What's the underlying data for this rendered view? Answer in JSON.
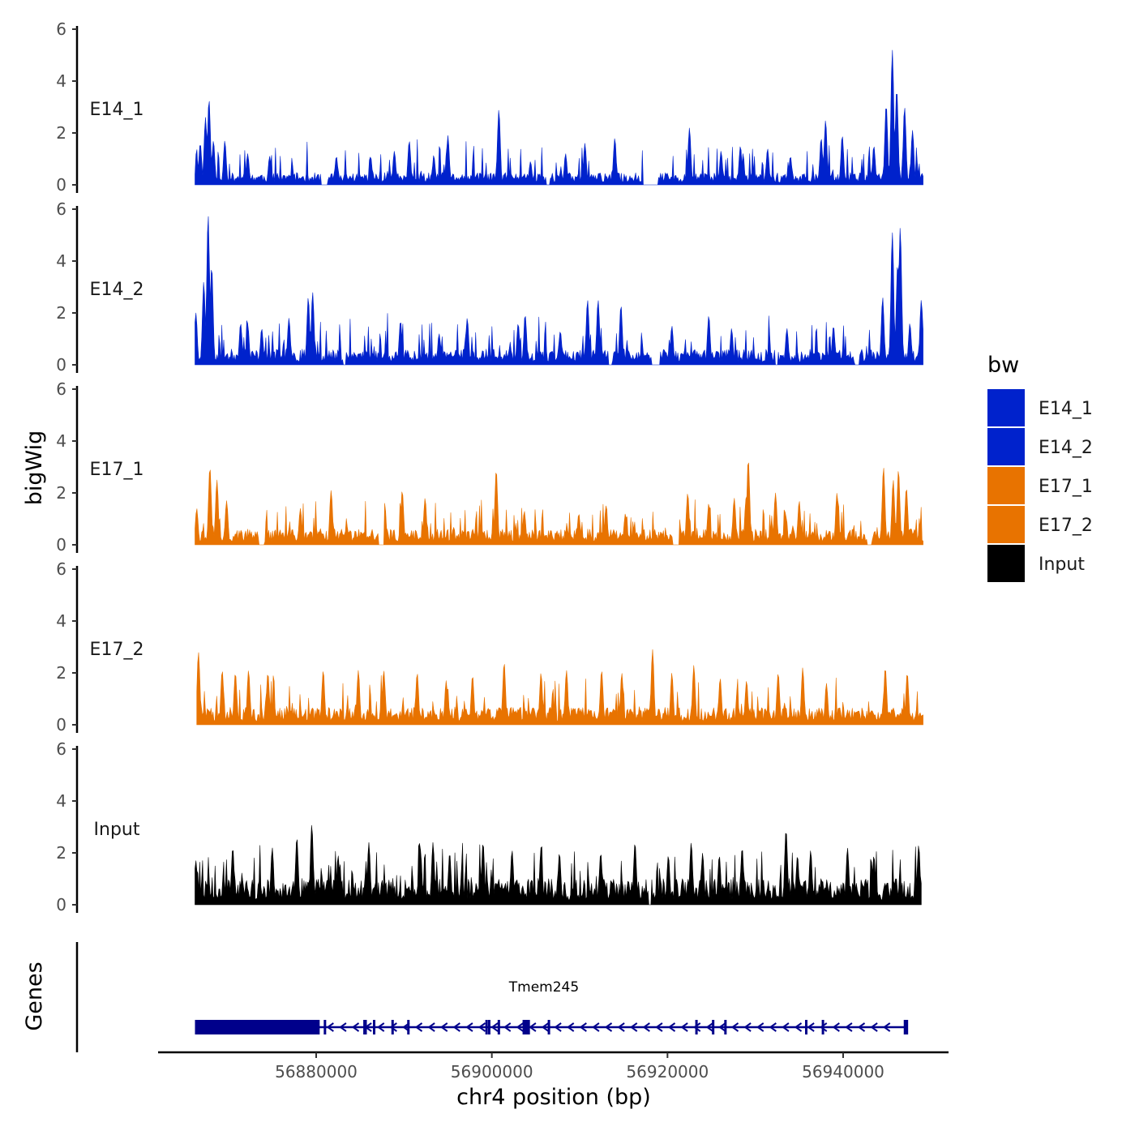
{
  "chart_data": {
    "type": "area",
    "title": "",
    "xlabel": "chr4 position (bp)",
    "ylabel": "bigWig",
    "genes_label": "Genes",
    "xlim": [
      56862000,
      56952000
    ],
    "ylim": [
      0,
      6
    ],
    "x_ticks": [
      56880000,
      56900000,
      56920000,
      56940000
    ],
    "x_tick_labels": [
      "56880000",
      "56900000",
      "56920000",
      "56940000"
    ],
    "y_ticks": [
      0,
      2,
      4,
      6
    ],
    "y_tick_labels": [
      "0",
      "2",
      "4",
      "6"
    ],
    "legend": {
      "title": "bw",
      "position": "right",
      "entries": [
        {
          "label": "E14_1",
          "color": "#0022CC"
        },
        {
          "label": "E14_2",
          "color": "#0022CC"
        },
        {
          "label": "E17_1",
          "color": "#E87300"
        },
        {
          "label": "E17_2",
          "color": "#E87300"
        },
        {
          "label": "Input",
          "color": "#000000"
        }
      ]
    },
    "tracks": [
      {
        "name": "E14_1",
        "color": "#0022CC",
        "x_start": 56866200,
        "x_end": 56949100,
        "base_level": 0.35,
        "noise": 0.55,
        "seed": 11,
        "gaps": [
          [
            56880500,
            56881300
          ],
          [
            56906200,
            56906600
          ],
          [
            56917200,
            56918900
          ]
        ],
        "peaks": [
          {
            "x": 56866400,
            "y": 0.9
          },
          {
            "x": 56866800,
            "y": 1.6
          },
          {
            "x": 56867400,
            "y": 2.6
          },
          {
            "x": 56867800,
            "y": 3.3
          },
          {
            "x": 56868300,
            "y": 1.7
          },
          {
            "x": 56869600,
            "y": 1.7
          },
          {
            "x": 56872200,
            "y": 1.2
          },
          {
            "x": 56874700,
            "y": 1.1
          },
          {
            "x": 56882300,
            "y": 1.1
          },
          {
            "x": 56886200,
            "y": 1.1
          },
          {
            "x": 56888900,
            "y": 1.3
          },
          {
            "x": 56890600,
            "y": 1.7
          },
          {
            "x": 56893400,
            "y": 1.1
          },
          {
            "x": 56895000,
            "y": 1.9
          },
          {
            "x": 56900800,
            "y": 2.9
          },
          {
            "x": 56904400,
            "y": 0.9
          },
          {
            "x": 56908400,
            "y": 1.2
          },
          {
            "x": 56910600,
            "y": 1.6
          },
          {
            "x": 56914000,
            "y": 1.8
          },
          {
            "x": 56922500,
            "y": 2.2
          },
          {
            "x": 56926100,
            "y": 1.3
          },
          {
            "x": 56928300,
            "y": 1.5
          },
          {
            "x": 56931400,
            "y": 1.4
          },
          {
            "x": 56934000,
            "y": 1.1
          },
          {
            "x": 56937500,
            "y": 1.8
          },
          {
            "x": 56938000,
            "y": 2.5
          },
          {
            "x": 56939900,
            "y": 1.9
          },
          {
            "x": 56943500,
            "y": 1.5
          },
          {
            "x": 56944900,
            "y": 3.1
          },
          {
            "x": 56945600,
            "y": 5.2
          },
          {
            "x": 56946100,
            "y": 3.7
          },
          {
            "x": 56947000,
            "y": 3.0
          },
          {
            "x": 56947900,
            "y": 2.1
          }
        ]
      },
      {
        "name": "E14_2",
        "color": "#0022CC",
        "x_start": 56866200,
        "x_end": 56949100,
        "base_level": 0.45,
        "noise": 0.6,
        "seed": 23,
        "gaps": [
          [
            56883000,
            56883400
          ],
          [
            56913300,
            56913700
          ],
          [
            56918200,
            56919200
          ],
          [
            56932300,
            56932600
          ],
          [
            56941300,
            56941800
          ]
        ],
        "peaks": [
          {
            "x": 56866300,
            "y": 2.0
          },
          {
            "x": 56867200,
            "y": 3.2
          },
          {
            "x": 56867700,
            "y": 5.8
          },
          {
            "x": 56868100,
            "y": 3.8
          },
          {
            "x": 56871400,
            "y": 1.6
          },
          {
            "x": 56872200,
            "y": 1.6
          },
          {
            "x": 56873800,
            "y": 1.4
          },
          {
            "x": 56876900,
            "y": 1.8
          },
          {
            "x": 56879100,
            "y": 2.6
          },
          {
            "x": 56879600,
            "y": 2.8
          },
          {
            "x": 56889600,
            "y": 1.7
          },
          {
            "x": 56894000,
            "y": 1.2
          },
          {
            "x": 56897200,
            "y": 1.8
          },
          {
            "x": 56903000,
            "y": 1.6
          },
          {
            "x": 56903800,
            "y": 1.9
          },
          {
            "x": 56907800,
            "y": 1.3
          },
          {
            "x": 56910900,
            "y": 2.5
          },
          {
            "x": 56912100,
            "y": 2.5
          },
          {
            "x": 56914700,
            "y": 2.3
          },
          {
            "x": 56920500,
            "y": 1.5
          },
          {
            "x": 56924700,
            "y": 1.9
          },
          {
            "x": 56927300,
            "y": 1.4
          },
          {
            "x": 56933600,
            "y": 1.4
          },
          {
            "x": 56938900,
            "y": 1.5
          },
          {
            "x": 56944500,
            "y": 2.6
          },
          {
            "x": 56945600,
            "y": 5.1
          },
          {
            "x": 56946200,
            "y": 3.9
          },
          {
            "x": 56946500,
            "y": 5.3
          },
          {
            "x": 56947600,
            "y": 1.6
          },
          {
            "x": 56948900,
            "y": 2.5
          }
        ]
      },
      {
        "name": "E17_1",
        "color": "#E87300",
        "x_start": 56866200,
        "x_end": 56949100,
        "base_level": 0.45,
        "noise": 0.55,
        "seed": 37,
        "gaps": [
          [
            56873400,
            56874100
          ],
          [
            56887100,
            56887700
          ],
          [
            56920600,
            56921300
          ],
          [
            56942700,
            56943300
          ]
        ],
        "peaks": [
          {
            "x": 56866400,
            "y": 1.4
          },
          {
            "x": 56867900,
            "y": 3.0
          },
          {
            "x": 56868700,
            "y": 2.5
          },
          {
            "x": 56869800,
            "y": 1.7
          },
          {
            "x": 56878200,
            "y": 1.4
          },
          {
            "x": 56881700,
            "y": 2.1
          },
          {
            "x": 56887800,
            "y": 1.6
          },
          {
            "x": 56889800,
            "y": 2.1
          },
          {
            "x": 56892400,
            "y": 1.8
          },
          {
            "x": 56900500,
            "y": 2.9
          },
          {
            "x": 56903700,
            "y": 1.3
          },
          {
            "x": 56909900,
            "y": 1.2
          },
          {
            "x": 56913000,
            "y": 1.5
          },
          {
            "x": 56915200,
            "y": 1.2
          },
          {
            "x": 56922300,
            "y": 2.0
          },
          {
            "x": 56924700,
            "y": 1.6
          },
          {
            "x": 56927600,
            "y": 1.8
          },
          {
            "x": 56929200,
            "y": 3.3
          },
          {
            "x": 56932300,
            "y": 2.0
          },
          {
            "x": 56935000,
            "y": 1.7
          },
          {
            "x": 56939300,
            "y": 2.0
          },
          {
            "x": 56944600,
            "y": 3.0
          },
          {
            "x": 56945700,
            "y": 2.5
          },
          {
            "x": 56946300,
            "y": 2.9
          },
          {
            "x": 56947200,
            "y": 2.2
          }
        ]
      },
      {
        "name": "E17_2",
        "color": "#E87300",
        "x_start": 56866400,
        "x_end": 56949100,
        "base_level": 0.5,
        "noise": 0.6,
        "seed": 51,
        "gaps": [],
        "peaks": [
          {
            "x": 56866600,
            "y": 2.8
          },
          {
            "x": 56869300,
            "y": 2.1
          },
          {
            "x": 56870800,
            "y": 2.0
          },
          {
            "x": 56872300,
            "y": 2.1
          },
          {
            "x": 56874500,
            "y": 2.0
          },
          {
            "x": 56880800,
            "y": 2.1
          },
          {
            "x": 56884800,
            "y": 2.1
          },
          {
            "x": 56887700,
            "y": 2.1
          },
          {
            "x": 56891500,
            "y": 2.0
          },
          {
            "x": 56894800,
            "y": 1.7
          },
          {
            "x": 56897800,
            "y": 1.9
          },
          {
            "x": 56901400,
            "y": 2.4
          },
          {
            "x": 56905600,
            "y": 2.0
          },
          {
            "x": 56908500,
            "y": 2.1
          },
          {
            "x": 56912500,
            "y": 2.1
          },
          {
            "x": 56914800,
            "y": 2.0
          },
          {
            "x": 56918300,
            "y": 2.9
          },
          {
            "x": 56920500,
            "y": 2.0
          },
          {
            "x": 56923000,
            "y": 2.3
          },
          {
            "x": 56926000,
            "y": 1.8
          },
          {
            "x": 56929000,
            "y": 1.7
          },
          {
            "x": 56932600,
            "y": 2.0
          },
          {
            "x": 56935400,
            "y": 2.2
          },
          {
            "x": 56938100,
            "y": 1.6
          },
          {
            "x": 56944800,
            "y": 2.2
          },
          {
            "x": 56947300,
            "y": 2.0
          }
        ]
      },
      {
        "name": "Input",
        "color": "#000000",
        "x_start": 56866200,
        "x_end": 56948900,
        "base_level": 0.75,
        "noise": 0.6,
        "seed": 67,
        "gaps": [
          [
            56917800,
            56918200
          ]
        ],
        "peaks": [
          {
            "x": 56866300,
            "y": 1.7
          },
          {
            "x": 56870500,
            "y": 2.2
          },
          {
            "x": 56875000,
            "y": 2.2
          },
          {
            "x": 56877800,
            "y": 2.6
          },
          {
            "x": 56879500,
            "y": 3.1
          },
          {
            "x": 56882500,
            "y": 1.9
          },
          {
            "x": 56886000,
            "y": 2.4
          },
          {
            "x": 56891800,
            "y": 2.4
          },
          {
            "x": 56893300,
            "y": 2.4
          },
          {
            "x": 56895200,
            "y": 2.0
          },
          {
            "x": 56899000,
            "y": 2.4
          },
          {
            "x": 56902300,
            "y": 2.1
          },
          {
            "x": 56905600,
            "y": 2.2
          },
          {
            "x": 56907700,
            "y": 2.0
          },
          {
            "x": 56912400,
            "y": 2.0
          },
          {
            "x": 56916300,
            "y": 2.4
          },
          {
            "x": 56920100,
            "y": 1.9
          },
          {
            "x": 56922700,
            "y": 2.4
          },
          {
            "x": 56924000,
            "y": 2.0
          },
          {
            "x": 56925900,
            "y": 1.9
          },
          {
            "x": 56928500,
            "y": 2.2
          },
          {
            "x": 56933500,
            "y": 2.9
          },
          {
            "x": 56934800,
            "y": 1.9
          },
          {
            "x": 56936300,
            "y": 2.1
          },
          {
            "x": 56940500,
            "y": 2.2
          },
          {
            "x": 56943500,
            "y": 1.9
          },
          {
            "x": 56948600,
            "y": 2.3
          }
        ]
      }
    ],
    "gene": {
      "name": "Tmem245",
      "strand": "-",
      "color": "#00008B",
      "start": 56866200,
      "end": 56947300,
      "thick_blocks": [
        [
          56866200,
          56880400
        ],
        [
          56885400,
          56885700
        ],
        [
          56903500,
          56904200
        ],
        [
          56946900,
          56947400
        ]
      ],
      "exons": [
        56881000,
        56885500,
        56886600,
        56888700,
        56890500,
        56899400,
        56899700,
        56900800,
        56904200,
        56906500,
        56923300,
        56925200,
        56926600,
        56935800,
        56937700
      ]
    }
  }
}
